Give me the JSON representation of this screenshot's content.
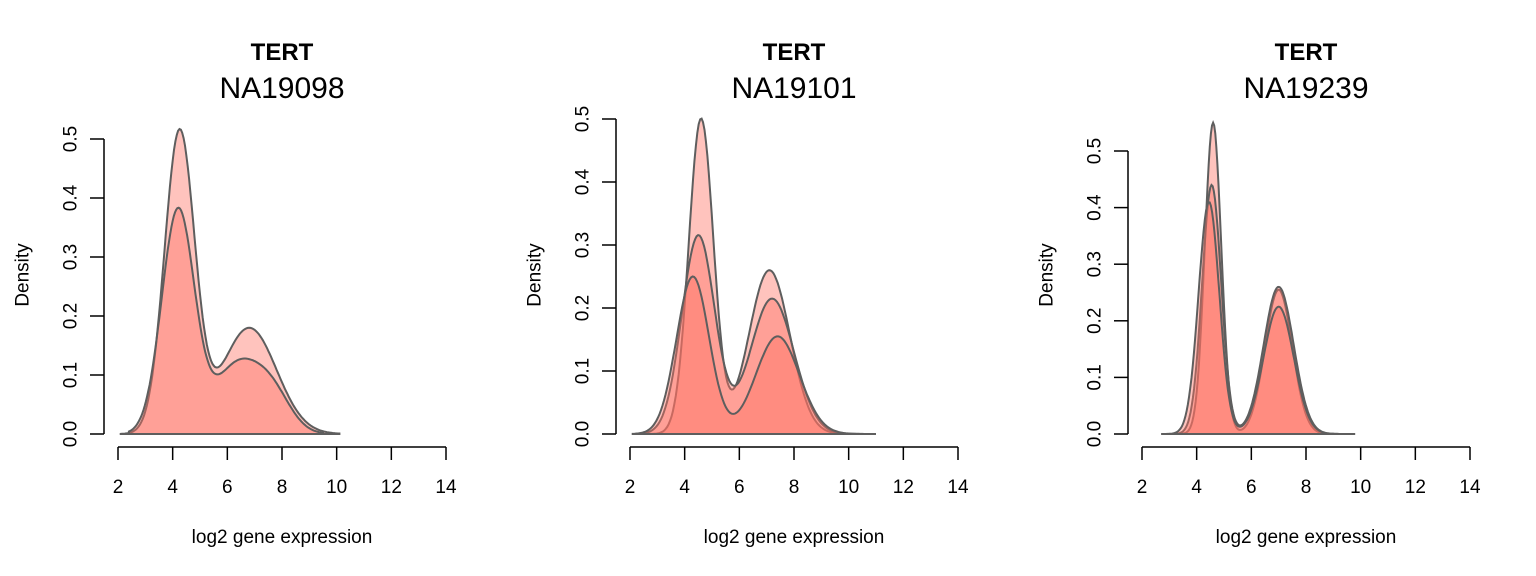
{
  "chart_data": [
    {
      "type": "area",
      "gene": "TERT",
      "sample": "NA19098",
      "xlabel": "log2 gene expression",
      "ylabel": "Density",
      "xlim": [
        2,
        14
      ],
      "ylim": [
        0,
        0.5
      ],
      "x_ticks": [
        "2",
        "4",
        "6",
        "8",
        "10",
        "12",
        "14"
      ],
      "y_ticks": [
        "0.0",
        "0.1",
        "0.2",
        "0.3",
        "0.4",
        "0.5"
      ],
      "fill_color": "#ff6f61",
      "line_color": "#5e5e5e",
      "grid": false,
      "series": [
        {
          "peaks": [
            [
              4.25,
              0.51,
              0.55
            ],
            [
              6.8,
              0.18,
              1.0
            ]
          ],
          "range": [
            2.1,
            10.1
          ]
        },
        {
          "peaks": [
            [
              4.2,
              0.38,
              0.6
            ],
            [
              6.3,
              0.11,
              0.8
            ],
            [
              7.6,
              0.07,
              0.7
            ]
          ],
          "range": [
            2.4,
            9.5
          ]
        }
      ]
    },
    {
      "type": "area",
      "gene": "TERT",
      "sample": "NA19101",
      "xlabel": "log2 gene expression",
      "ylabel": "Density",
      "xlim": [
        2,
        14
      ],
      "ylim": [
        0,
        0.5
      ],
      "x_ticks": [
        "2",
        "4",
        "6",
        "8",
        "10",
        "12",
        "14"
      ],
      "y_ticks": [
        "0.0",
        "0.1",
        "0.2",
        "0.3",
        "0.4",
        "0.5"
      ],
      "fill_color": "#ff6f61",
      "line_color": "#5e5e5e",
      "grid": false,
      "series": [
        {
          "peaks": [
            [
              4.6,
              0.5,
              0.45
            ],
            [
              7.1,
              0.26,
              0.75
            ]
          ],
          "range": [
            2.1,
            10.5
          ]
        },
        {
          "peaks": [
            [
              4.5,
              0.315,
              0.6
            ],
            [
              7.2,
              0.215,
              0.8
            ]
          ],
          "range": [
            2.1,
            10.8
          ]
        },
        {
          "peaks": [
            [
              4.3,
              0.25,
              0.6
            ],
            [
              7.4,
              0.155,
              0.8
            ]
          ],
          "range": [
            2.2,
            11.0
          ]
        }
      ]
    },
    {
      "type": "area",
      "gene": "TERT",
      "sample": "NA19239",
      "xlabel": "log2 gene expression",
      "ylabel": "Density",
      "xlim": [
        2,
        14
      ],
      "ylim": [
        0,
        0.5
      ],
      "x_ticks": [
        "2",
        "4",
        "6",
        "8",
        "10",
        "12",
        "14"
      ],
      "y_ticks": [
        "0.0",
        "0.1",
        "0.2",
        "0.3",
        "0.4",
        "0.5"
      ],
      "fill_color": "#ff6f61",
      "line_color": "#5e5e5e",
      "grid": false,
      "series": [
        {
          "peaks": [
            [
              4.6,
              0.55,
              0.3
            ],
            [
              7.0,
              0.255,
              0.5
            ]
          ],
          "range": [
            2.8,
            9.2
          ]
        },
        {
          "peaks": [
            [
              4.55,
              0.44,
              0.35
            ],
            [
              7.0,
              0.26,
              0.55
            ]
          ],
          "range": [
            2.8,
            9.6
          ]
        },
        {
          "peaks": [
            [
              4.45,
              0.41,
              0.38
            ],
            [
              7.0,
              0.225,
              0.55
            ]
          ],
          "range": [
            2.7,
            9.8
          ]
        }
      ]
    }
  ]
}
